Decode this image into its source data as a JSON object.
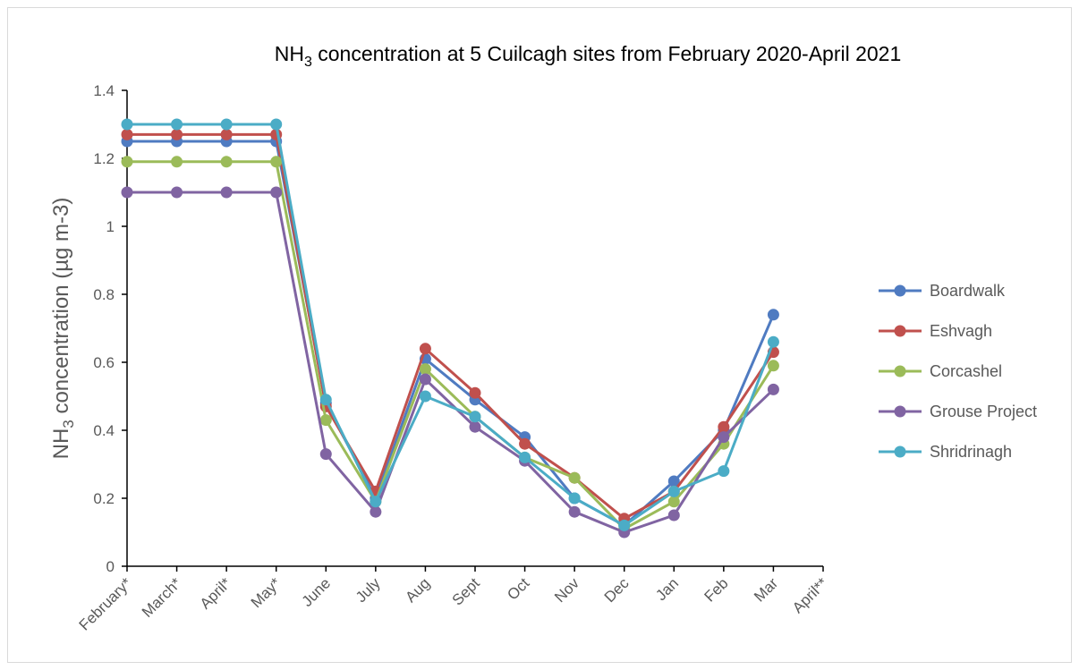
{
  "chart_data": {
    "type": "line",
    "title": [
      "NH",
      "3",
      " concentration at 5 Cuilcagh sites from February 2020-April 2021"
    ],
    "y_label": [
      "NH",
      "3",
      " concentration (µg m-3)"
    ],
    "categories": [
      "February*",
      "March*",
      "April*",
      "May*",
      "June",
      "July",
      "Aug",
      "Sept",
      "Oct",
      "Nov",
      "Dec",
      "Jan",
      "Feb",
      "Mar",
      "April**"
    ],
    "series": [
      {
        "name": "Boardwalk",
        "color": "#4f7bc1",
        "values": [
          1.25,
          1.25,
          1.25,
          1.25,
          0.48,
          0.2,
          0.61,
          0.49,
          0.38,
          0.2,
          0.12,
          0.25,
          0.4,
          0.74,
          null
        ]
      },
      {
        "name": "Eshvagh",
        "color": "#c0504d",
        "values": [
          1.27,
          1.27,
          1.27,
          1.27,
          0.47,
          0.22,
          0.64,
          0.51,
          0.36,
          0.26,
          0.14,
          0.22,
          0.41,
          0.63,
          null
        ]
      },
      {
        "name": "Corcashel",
        "color": "#9bbb59",
        "values": [
          1.19,
          1.19,
          1.19,
          1.19,
          0.43,
          0.19,
          0.58,
          0.44,
          0.32,
          0.26,
          0.11,
          0.19,
          0.36,
          0.59,
          null
        ]
      },
      {
        "name": "Grouse Project",
        "color": "#8064a2",
        "values": [
          1.1,
          1.1,
          1.1,
          1.1,
          0.33,
          0.16,
          0.55,
          0.41,
          0.31,
          0.16,
          0.1,
          0.15,
          0.38,
          0.52,
          null
        ]
      },
      {
        "name": "Shridrinagh",
        "color": "#4bacc6",
        "values": [
          1.3,
          1.3,
          1.3,
          1.3,
          0.49,
          0.19,
          0.5,
          0.44,
          0.32,
          0.2,
          0.12,
          0.22,
          0.28,
          0.66,
          null
        ]
      }
    ],
    "ylim": [
      0,
      1.4
    ],
    "yticks": [
      0,
      0.2,
      0.4,
      0.6,
      0.8,
      1,
      1.2,
      1.4
    ],
    "grid": false,
    "legend": "right"
  }
}
